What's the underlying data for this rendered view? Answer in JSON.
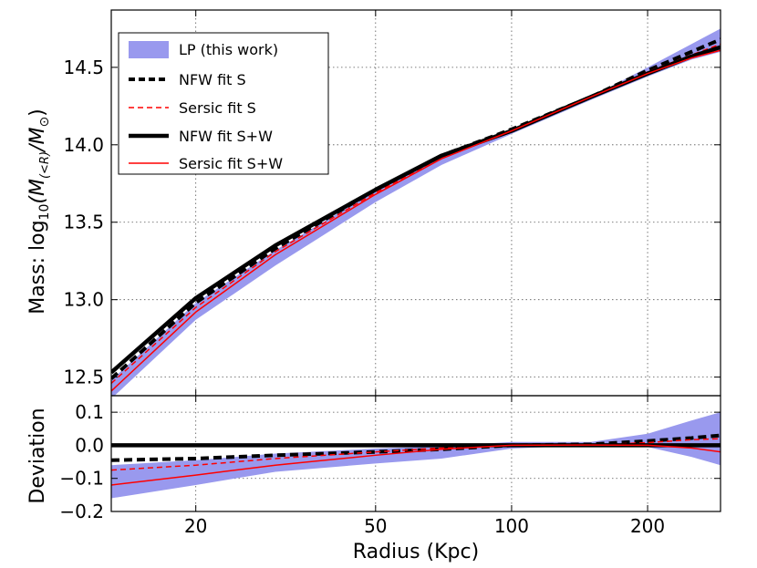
{
  "chart_data": {
    "type": "line",
    "xlabel": "Radius (Kpc)",
    "xscale": "log",
    "xlim": [
      13,
      290
    ],
    "x_ticks": [
      20,
      50,
      100,
      200
    ],
    "x_tick_labels": [
      "20",
      "50",
      "100",
      "200"
    ],
    "x": [
      13,
      20,
      30,
      50,
      70,
      100,
      150,
      200,
      250,
      290
    ],
    "panels": [
      {
        "name": "mass",
        "ylabel_prefix": "Mass: log",
        "ylabel_sub": "10",
        "ylabel_expr": "(M",
        "ylabel_expr_sub": "(<R)",
        "ylabel_mid": "/M",
        "ylabel_sun": "⊙",
        "ylabel_close": ")",
        "ylim": [
          12.38,
          14.87
        ],
        "y_ticks": [
          12.5,
          13.0,
          13.5,
          14.0,
          14.5
        ],
        "y_tick_labels": [
          "12.5",
          "13.0",
          "13.5",
          "14.0",
          "14.5"
        ],
        "band": {
          "name": "LP (this work)",
          "color": "#9999ee",
          "lower": [
            12.36,
            12.87,
            13.22,
            13.63,
            13.87,
            14.07,
            14.29,
            14.44,
            14.55,
            14.6
          ],
          "upper": [
            12.48,
            12.98,
            13.32,
            13.7,
            13.92,
            14.09,
            14.31,
            14.5,
            14.65,
            14.75
          ]
        },
        "series": [
          {
            "name": "NFW fit S",
            "style": "dashed-thick",
            "color": "#000000",
            "values": [
              12.49,
              12.98,
              13.33,
              13.71,
              13.93,
              14.1,
              14.31,
              14.48,
              14.6,
              14.68
            ]
          },
          {
            "name": "Sersic fit S",
            "style": "dashed-thin",
            "color": "#ff0000",
            "values": [
              12.46,
              12.95,
              13.31,
              13.69,
              13.92,
              14.09,
              14.31,
              14.47,
              14.58,
              14.65
            ]
          },
          {
            "name": "NFW fit S+W",
            "style": "solid-thick",
            "color": "#000000",
            "values": [
              12.53,
              13.01,
              13.35,
              13.71,
              13.93,
              14.09,
              14.31,
              14.46,
              14.57,
              14.63
            ]
          },
          {
            "name": "Sersic fit S+W",
            "style": "solid-thin",
            "color": "#ff0000",
            "values": [
              12.41,
              12.92,
              13.29,
              13.68,
              13.91,
              14.09,
              14.31,
              14.46,
              14.56,
              14.61
            ]
          }
        ]
      },
      {
        "name": "deviation",
        "ylabel": "Deviation",
        "ylim": [
          -0.2,
          0.15
        ],
        "y_ticks": [
          -0.2,
          -0.1,
          0.0,
          0.1
        ],
        "y_tick_labels": [
          "−0.2",
          "−0.1",
          "0.0",
          "0.1"
        ],
        "band": {
          "name": "LP (this work)",
          "color": "#9999ee",
          "lower": [
            -0.16,
            -0.12,
            -0.08,
            -0.055,
            -0.04,
            -0.01,
            0.0,
            -0.005,
            -0.035,
            -0.06
          ],
          "upper": [
            -0.06,
            -0.045,
            -0.025,
            -0.01,
            -0.003,
            0.01,
            0.01,
            0.035,
            0.075,
            0.1
          ]
        },
        "series": [
          {
            "name": "NFW fit S",
            "style": "dashed-thick",
            "color": "#000000",
            "values": [
              -0.045,
              -0.04,
              -0.03,
              -0.02,
              -0.012,
              0.0,
              0.003,
              0.013,
              0.022,
              0.03
            ]
          },
          {
            "name": "Sersic fit S",
            "style": "dashed-thin",
            "color": "#ff0000",
            "values": [
              -0.075,
              -0.06,
              -0.04,
              -0.02,
              -0.008,
              0.0,
              0.001,
              0.008,
              0.017,
              0.02
            ]
          },
          {
            "name": "NFW fit S+W",
            "style": "solid-thick",
            "color": "#000000",
            "values": [
              0,
              0,
              0,
              0,
              0,
              0,
              0,
              0,
              0,
              0
            ]
          },
          {
            "name": "Sersic fit S+W",
            "style": "solid-thin",
            "color": "#ff0000",
            "values": [
              -0.12,
              -0.09,
              -0.06,
              -0.03,
              -0.012,
              0.0,
              0.001,
              0.0,
              -0.008,
              -0.02
            ]
          }
        ]
      }
    ],
    "legend": {
      "position": "upper-left",
      "entries": [
        "LP (this work)",
        "NFW fit S",
        "Sersic fit S",
        "NFW fit S+W",
        "Sersic fit S+W"
      ]
    }
  }
}
